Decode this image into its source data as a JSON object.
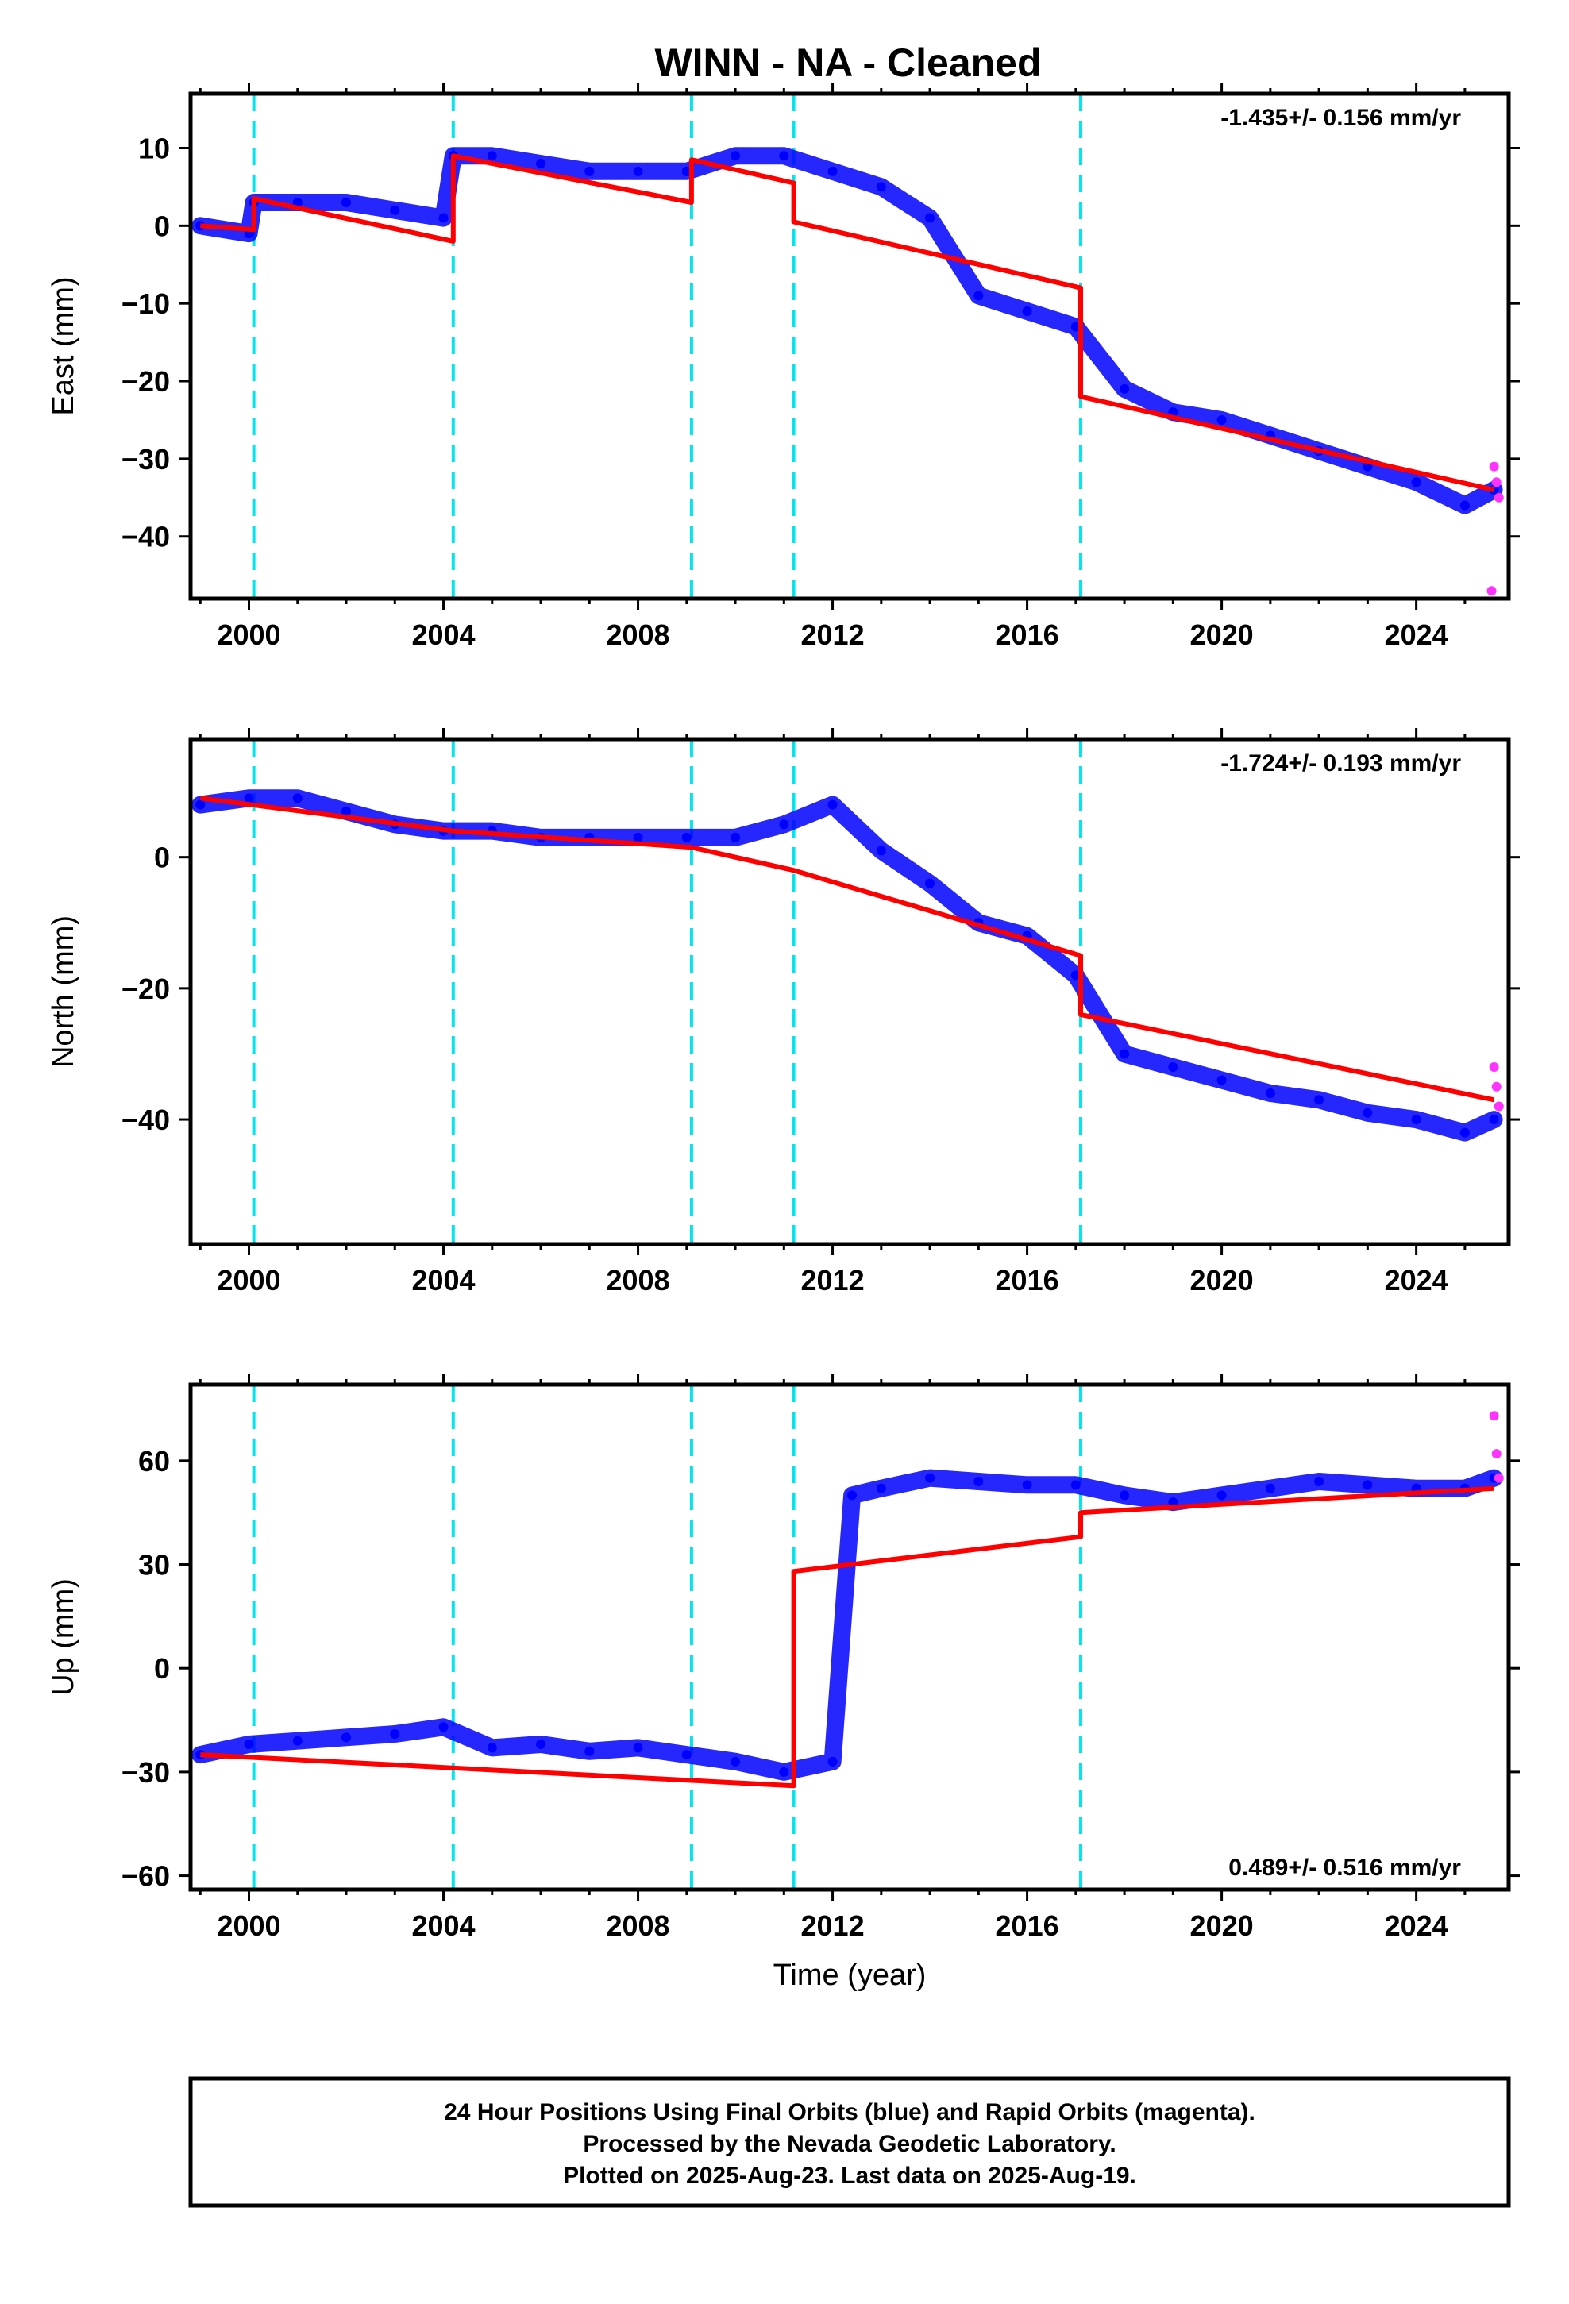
{
  "title": "WINN  - NA - Cleaned",
  "colors": {
    "final_orbits": "#0000ff",
    "rapid_orbits": "#ff33ff",
    "model": "#ff0000",
    "offsets": "#00e5ee",
    "frame": "#000000"
  },
  "chart_data": [
    {
      "type": "scatter",
      "ylabel": "East (mm)",
      "rate_text": "-1.435+/- 0.156 mm/yr",
      "xlim": [
        1998.8,
        2025.9
      ],
      "ylim": [
        -48,
        17
      ],
      "xticks": [
        2000,
        2004,
        2008,
        2012,
        2016,
        2020,
        2024
      ],
      "yticks": [
        10,
        0,
        -10,
        -20,
        -30,
        -40
      ],
      "offset_lines": [
        2000.1,
        2004.2,
        2009.1,
        2011.2,
        2017.1
      ],
      "series": [
        {
          "values": [
            [
              1999.0,
              0
            ],
            [
              2000.0,
              -1
            ],
            [
              2000.1,
              3
            ],
            [
              2001.0,
              3
            ],
            [
              2002.0,
              3
            ],
            [
              2003.0,
              2
            ],
            [
              2004.0,
              1
            ],
            [
              2004.2,
              9
            ],
            [
              2005.0,
              9
            ],
            [
              2006.0,
              8
            ],
            [
              2007.0,
              7
            ],
            [
              2008.0,
              7
            ],
            [
              2009.0,
              7
            ],
            [
              2010.0,
              9
            ],
            [
              2011.0,
              9
            ],
            [
              2012.0,
              7
            ],
            [
              2013.0,
              5
            ],
            [
              2014.0,
              1
            ],
            [
              2015.0,
              -9
            ],
            [
              2016.0,
              -11
            ],
            [
              2017.0,
              -13
            ],
            [
              2018.0,
              -21
            ],
            [
              2019.0,
              -24
            ],
            [
              2020.0,
              -25
            ],
            [
              2021.0,
              -27
            ],
            [
              2022.0,
              -29
            ],
            [
              2023.0,
              -31
            ],
            [
              2024.0,
              -33
            ],
            [
              2025.0,
              -36
            ],
            [
              2025.6,
              -34
            ]
          ]
        },
        {
          "values": [
            [
              2025.6,
              -31
            ],
            [
              2025.65,
              -33
            ],
            [
              2025.7,
              -35
            ],
            [
              2025.55,
              -47
            ]
          ]
        },
        {
          "values": [
            [
              1999.0,
              0
            ],
            [
              2000.1,
              -0.5
            ],
            [
              2000.1,
              3.5
            ],
            [
              2004.2,
              -2
            ],
            [
              2004.2,
              9
            ],
            [
              2009.1,
              3
            ],
            [
              2009.1,
              8.5
            ],
            [
              2011.2,
              5.5
            ],
            [
              2011.2,
              0.5
            ],
            [
              2017.1,
              -8
            ],
            [
              2017.1,
              -22
            ],
            [
              2025.6,
              -34
            ]
          ]
        }
      ]
    },
    {
      "type": "scatter",
      "ylabel": "North (mm)",
      "rate_text": "-1.724+/- 0.193 mm/yr",
      "xlim": [
        1998.8,
        2025.9
      ],
      "ylim": [
        -59,
        18
      ],
      "xticks": [
        2000,
        2004,
        2008,
        2012,
        2016,
        2020,
        2024
      ],
      "yticks": [
        0,
        -20,
        -40
      ],
      "offset_lines": [
        2000.1,
        2004.2,
        2009.1,
        2011.2,
        2017.1
      ],
      "series": [
        {
          "values": [
            [
              1999.0,
              8
            ],
            [
              2000.0,
              9
            ],
            [
              2001.0,
              9
            ],
            [
              2002.0,
              7
            ],
            [
              2003.0,
              5
            ],
            [
              2004.0,
              4
            ],
            [
              2005.0,
              4
            ],
            [
              2006.0,
              3
            ],
            [
              2007.0,
              3
            ],
            [
              2008.0,
              3
            ],
            [
              2009.0,
              3
            ],
            [
              2010.0,
              3
            ],
            [
              2011.0,
              5
            ],
            [
              2012.0,
              8
            ],
            [
              2013.0,
              1
            ],
            [
              2014.0,
              -4
            ],
            [
              2015.0,
              -10
            ],
            [
              2016.0,
              -12
            ],
            [
              2017.0,
              -18
            ],
            [
              2018.0,
              -30
            ],
            [
              2019.0,
              -32
            ],
            [
              2020.0,
              -34
            ],
            [
              2021.0,
              -36
            ],
            [
              2022.0,
              -37
            ],
            [
              2023.0,
              -39
            ],
            [
              2024.0,
              -40
            ],
            [
              2025.0,
              -42
            ],
            [
              2025.6,
              -40
            ]
          ]
        },
        {
          "values": [
            [
              2025.6,
              -32
            ],
            [
              2025.65,
              -35
            ],
            [
              2025.7,
              -38
            ]
          ]
        },
        {
          "values": [
            [
              1999.0,
              9
            ],
            [
              2004.2,
              4
            ],
            [
              2009.1,
              1.5
            ],
            [
              2011.2,
              -2
            ],
            [
              2017.1,
              -15
            ],
            [
              2017.1,
              -24
            ],
            [
              2025.6,
              -37
            ]
          ]
        }
      ]
    },
    {
      "type": "scatter",
      "ylabel": "Up (mm)",
      "xlabel": "Time (year)",
      "rate_text": "0.489+/- 0.516 mm/yr",
      "xlim": [
        1998.8,
        2025.9
      ],
      "ylim": [
        -64,
        82
      ],
      "xticks": [
        2000,
        2004,
        2008,
        2012,
        2016,
        2020,
        2024
      ],
      "yticks": [
        60,
        30,
        0,
        -30,
        -60
      ],
      "offset_lines": [
        2000.1,
        2004.2,
        2009.1,
        2011.2,
        2017.1
      ],
      "series": [
        {
          "values": [
            [
              1999.0,
              -25
            ],
            [
              2000.0,
              -22
            ],
            [
              2001.0,
              -21
            ],
            [
              2002.0,
              -20
            ],
            [
              2003.0,
              -19
            ],
            [
              2004.0,
              -17
            ],
            [
              2005.0,
              -23
            ],
            [
              2006.0,
              -22
            ],
            [
              2007.0,
              -24
            ],
            [
              2008.0,
              -23
            ],
            [
              2009.0,
              -25
            ],
            [
              2010.0,
              -27
            ],
            [
              2011.0,
              -30
            ],
            [
              2012.0,
              -27
            ],
            [
              2012.4,
              50
            ],
            [
              2013.0,
              52
            ],
            [
              2014.0,
              55
            ],
            [
              2015.0,
              54
            ],
            [
              2016.0,
              53
            ],
            [
              2017.0,
              53
            ],
            [
              2018.0,
              50
            ],
            [
              2019.0,
              48
            ],
            [
              2020.0,
              50
            ],
            [
              2021.0,
              52
            ],
            [
              2022.0,
              54
            ],
            [
              2023.0,
              53
            ],
            [
              2024.0,
              52
            ],
            [
              2025.0,
              52
            ],
            [
              2025.6,
              55
            ]
          ]
        },
        {
          "values": [
            [
              2025.6,
              73
            ],
            [
              2025.65,
              62
            ],
            [
              2025.7,
              55
            ]
          ]
        },
        {
          "values": [
            [
              1999.0,
              -25
            ],
            [
              2011.2,
              -34
            ],
            [
              2011.2,
              28
            ],
            [
              2017.1,
              38
            ],
            [
              2017.1,
              45
            ],
            [
              2025.6,
              52
            ]
          ]
        }
      ]
    }
  ],
  "footer": {
    "line1": "24 Hour Positions Using Final Orbits (blue) and Rapid Orbits (magenta).",
    "line2": "Processed by the Nevada Geodetic Laboratory.",
    "line3": "Plotted on 2025-Aug-23. Last data on 2025-Aug-19."
  }
}
